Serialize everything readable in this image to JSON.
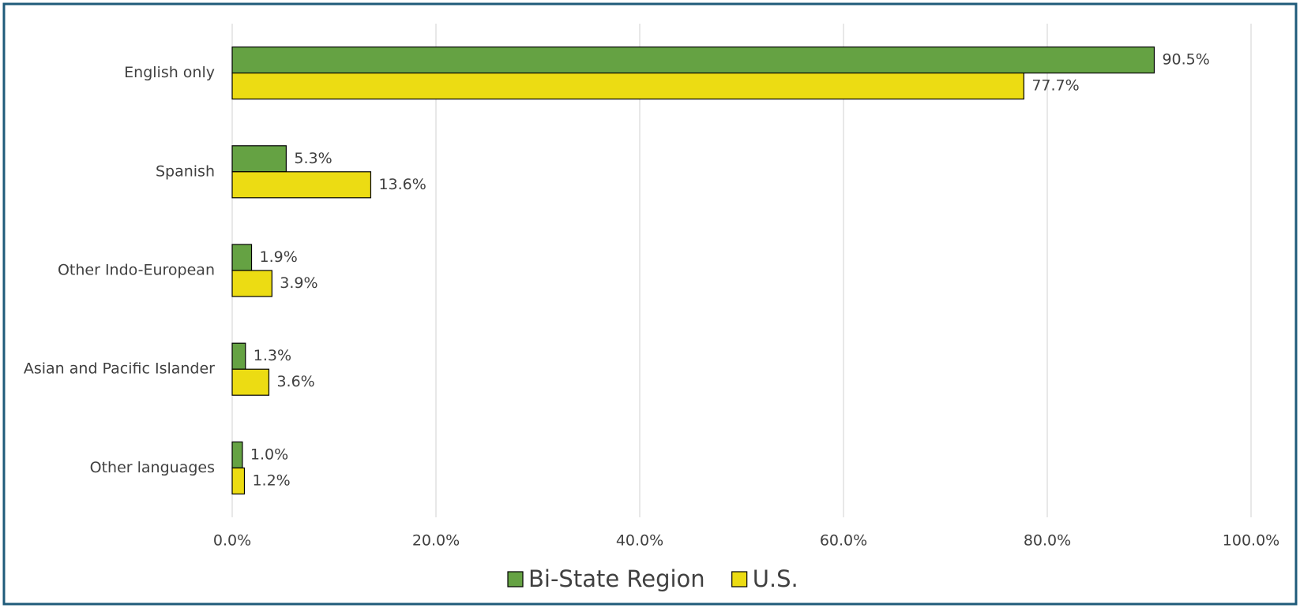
{
  "chart_data": {
    "type": "hbar",
    "categories": [
      "English only",
      "Spanish",
      "Other Indo-European",
      "Asian and Pacific Islander",
      "Other languages"
    ],
    "series": [
      {
        "name": "Bi-State Region",
        "color": "#65a243",
        "values": [
          90.5,
          5.3,
          1.9,
          1.3,
          1.0
        ],
        "value_labels": [
          "90.5%",
          "5.3%",
          "1.9%",
          "1.3%",
          "1.0%"
        ]
      },
      {
        "name": "U.S.",
        "color": "#ecdc13",
        "values": [
          77.7,
          13.6,
          3.9,
          3.6,
          1.2
        ],
        "value_labels": [
          "77.7%",
          "13.6%",
          "3.9%",
          "3.6%",
          "1.2%"
        ]
      }
    ],
    "xlim": [
      0,
      100
    ],
    "xticks": [
      {
        "value": 0,
        "label": "0.0%"
      },
      {
        "value": 20,
        "label": "20.0%"
      },
      {
        "value": 40,
        "label": "40.0%"
      },
      {
        "value": 60,
        "label": "60.0%"
      },
      {
        "value": 80,
        "label": "80.0%"
      },
      {
        "value": 100,
        "label": "100.0%"
      }
    ],
    "grid": true,
    "legend": "bottom"
  }
}
